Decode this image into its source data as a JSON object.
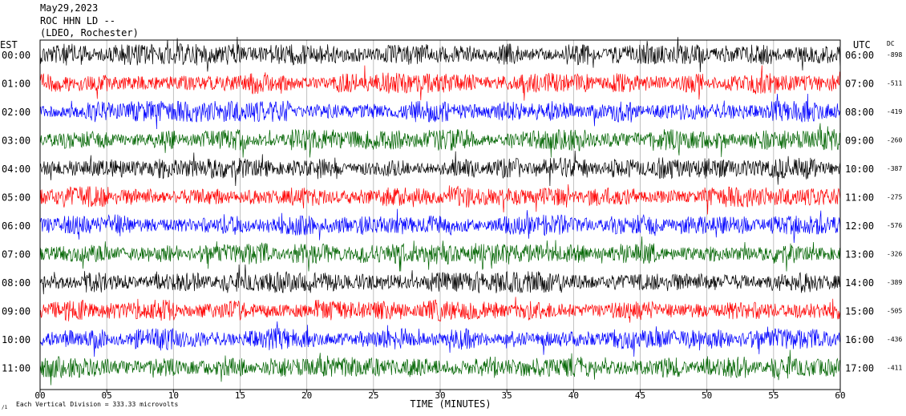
{
  "header": {
    "date": "May29,2023",
    "station": "ROC HHN LD --",
    "network": "(LDEO, Rochester)"
  },
  "chart_data": {
    "type": "line",
    "title": "",
    "left_axis_label": "EST",
    "right_axis_label": "UTC",
    "dc_label": "DC",
    "xlabel": "TIME (MINUTES)",
    "xlim": [
      0,
      60
    ],
    "x_ticks": [
      "00",
      "05",
      "10",
      "15",
      "20",
      "25",
      "30",
      "35",
      "40",
      "45",
      "50",
      "55",
      "60"
    ],
    "footnote": "Each Vertical Division = 333.33 microvolts",
    "grid": true,
    "trace_colors": [
      "#000000",
      "#ff0000",
      "#0000ff",
      "#006400"
    ],
    "rows": [
      {
        "est": "00:00",
        "utc": "06:00",
        "dc": "-898",
        "color": "#000000"
      },
      {
        "est": "01:00",
        "utc": "07:00",
        "dc": "-511",
        "color": "#ff0000"
      },
      {
        "est": "02:00",
        "utc": "08:00",
        "dc": "-419",
        "color": "#0000ff"
      },
      {
        "est": "03:00",
        "utc": "09:00",
        "dc": "-260",
        "color": "#006400"
      },
      {
        "est": "04:00",
        "utc": "10:00",
        "dc": "-387",
        "color": "#000000"
      },
      {
        "est": "05:00",
        "utc": "11:00",
        "dc": "-275",
        "color": "#ff0000"
      },
      {
        "est": "06:00",
        "utc": "12:00",
        "dc": "-576",
        "color": "#0000ff"
      },
      {
        "est": "07:00",
        "utc": "13:00",
        "dc": "-326",
        "color": "#006400"
      },
      {
        "est": "08:00",
        "utc": "14:00",
        "dc": "-389",
        "color": "#000000"
      },
      {
        "est": "09:00",
        "utc": "15:00",
        "dc": "-505",
        "color": "#ff0000"
      },
      {
        "est": "10:00",
        "utc": "16:00",
        "dc": "-436",
        "color": "#0000ff"
      },
      {
        "est": "11:00",
        "utc": "17:00",
        "dc": "-411",
        "color": "#006400"
      }
    ]
  }
}
